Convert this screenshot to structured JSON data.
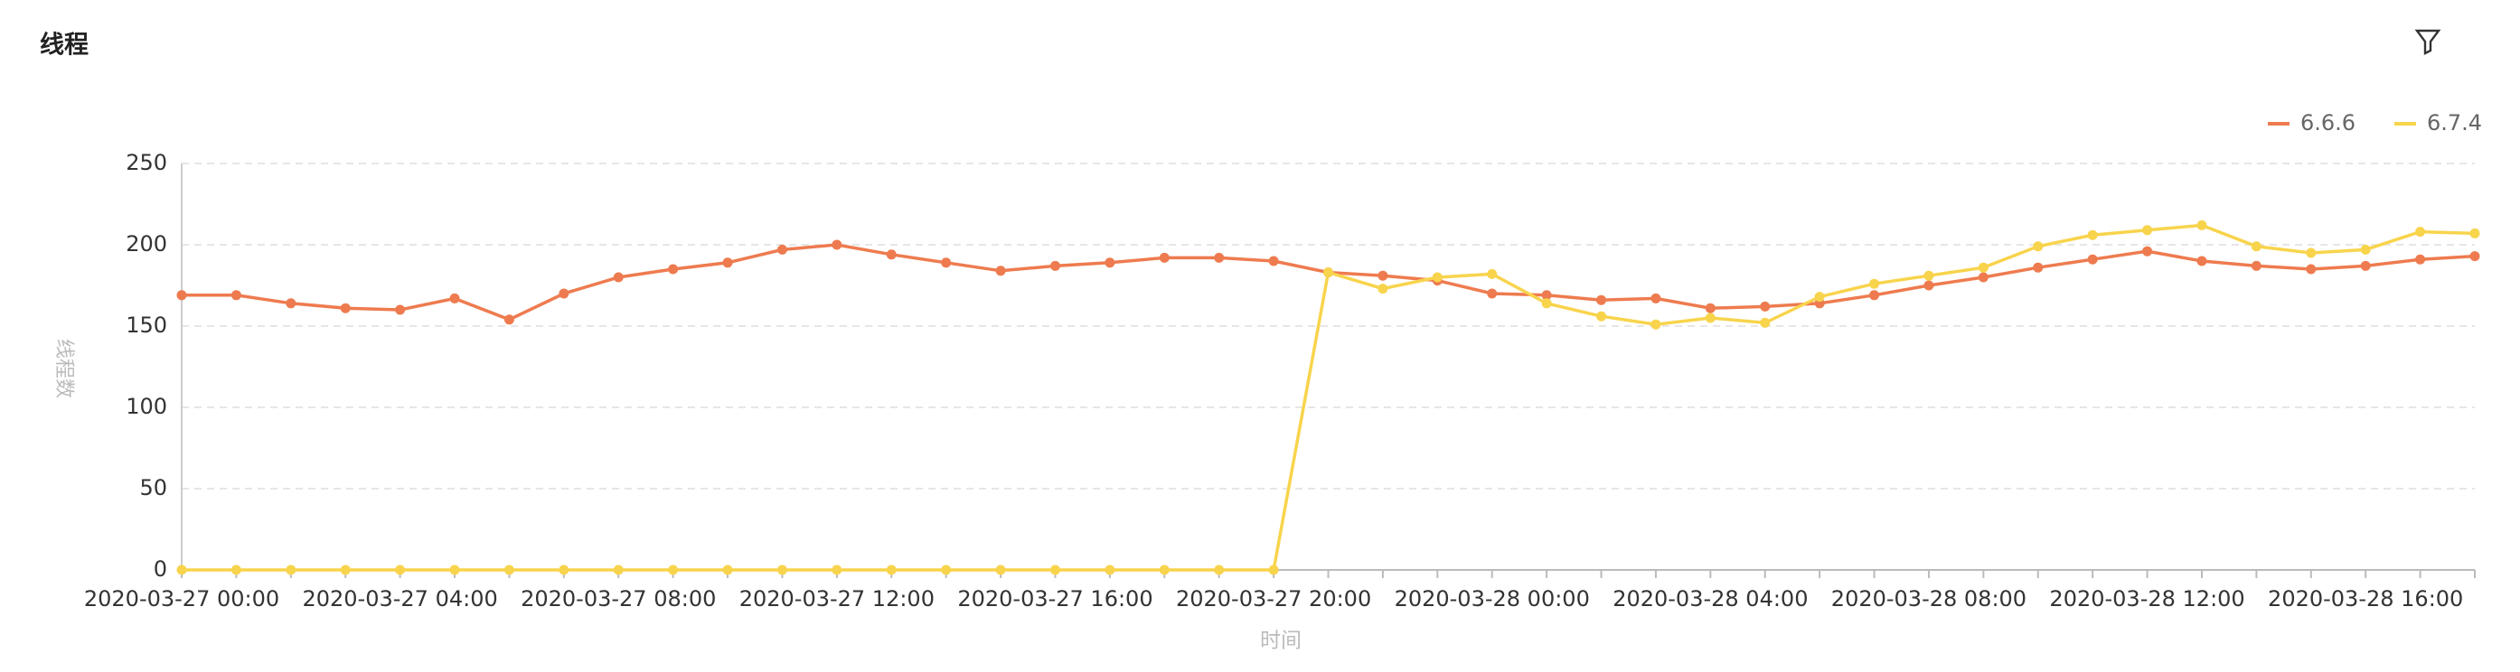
{
  "chart_data": {
    "type": "line",
    "title": "线程",
    "y_label": "线程数",
    "x_label": "时间",
    "categories": [
      "2020-03-27 00:00",
      null,
      null,
      null,
      "2020-03-27 04:00",
      null,
      null,
      null,
      "2020-03-27 08:00",
      null,
      null,
      null,
      "2020-03-27 12:00",
      null,
      null,
      null,
      "2020-03-27 16:00",
      null,
      null,
      null,
      "2020-03-27 20:00",
      null,
      null,
      null,
      "2020-03-28 00:00",
      null,
      null,
      null,
      "2020-03-28 04:00",
      null,
      null,
      null,
      "2020-03-28 08:00",
      null,
      null,
      null,
      "2020-03-28 12:00",
      null,
      null,
      null,
      "2020-03-28 16:00",
      null,
      null
    ],
    "series": [
      {
        "name": "6.6.6",
        "color": "#ee7b4f",
        "values": [
          169,
          169,
          164,
          161,
          160,
          167,
          154,
          170,
          180,
          185,
          189,
          197,
          200,
          194,
          189,
          184,
          187,
          189,
          192,
          192,
          190,
          183,
          181,
          178,
          170,
          169,
          166,
          167,
          161,
          162,
          164,
          169,
          175,
          180,
          186,
          191,
          196,
          190,
          187,
          185,
          187,
          191,
          193
        ]
      },
      {
        "name": "6.7.4",
        "color": "#f8d44c",
        "values": [
          0,
          0,
          0,
          0,
          0,
          0,
          0,
          0,
          0,
          0,
          0,
          0,
          0,
          0,
          0,
          0,
          0,
          0,
          0,
          0,
          0,
          183,
          173,
          180,
          182,
          164,
          156,
          151,
          155,
          152,
          168,
          176,
          181,
          186,
          199,
          206,
          209,
          212,
          199,
          195,
          197,
          208,
          207
        ]
      }
    ],
    "ylim": [
      0,
      250
    ],
    "yticks": [
      0,
      50,
      100,
      150,
      200,
      250
    ],
    "grid": true,
    "legend": "top-right"
  }
}
